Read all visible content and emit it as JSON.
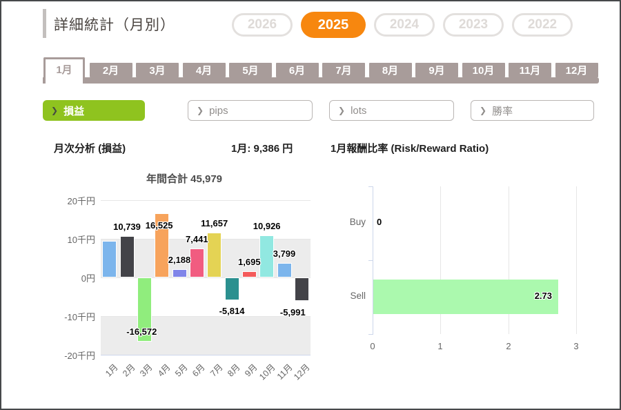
{
  "header": {
    "title": "詳細統計（月別）",
    "years": [
      {
        "label": "2026",
        "active": false
      },
      {
        "label": "2025",
        "active": true
      },
      {
        "label": "2024",
        "active": false
      },
      {
        "label": "2023",
        "active": false
      },
      {
        "label": "2022",
        "active": false
      }
    ],
    "active_year_color": "#f7870f"
  },
  "month_tabs": {
    "labels": [
      "1月",
      "2月",
      "3月",
      "4月",
      "5月",
      "6月",
      "7月",
      "8月",
      "9月",
      "10月",
      "11月",
      "12月"
    ],
    "active_index": 0,
    "color": "#a89c9a"
  },
  "filters": [
    {
      "label": "損益",
      "active": true
    },
    {
      "label": "pips",
      "active": false
    },
    {
      "label": "lots",
      "active": false
    },
    {
      "label": "勝率",
      "active": false
    }
  ],
  "filter_active_color": "#8fc31f",
  "section": {
    "left_title": "月次分析 (損益)",
    "selected_month_value": "1月: 9,386 円",
    "right_title": "1月報酬比率 (Risk/Reward Ratio)"
  },
  "chart_data": [
    {
      "type": "bar",
      "title": "年間合計 45,979",
      "categories": [
        "1月",
        "2月",
        "3月",
        "4月",
        "5月",
        "6月",
        "7月",
        "8月",
        "9月",
        "10月",
        "11月",
        "12月"
      ],
      "values": [
        9386,
        10739,
        -16572,
        16525,
        2188,
        7441,
        11657,
        -5814,
        1695,
        10926,
        3799,
        -5991
      ],
      "labels": [
        "",
        "10,739",
        "-16,572",
        "16,525",
        "2,188",
        "7,441",
        "11,657",
        "-5,814",
        "1,695",
        "10,926",
        "3,799",
        "-5,991"
      ],
      "colors": [
        "#7cb5ec",
        "#434348",
        "#90ed7d",
        "#f7a35c",
        "#8085e9",
        "#f15c80",
        "#e4d354",
        "#2b908f",
        "#f45b5b",
        "#91e8e1",
        "#7cb5ec",
        "#434348"
      ],
      "ytick_labels": [
        "20千円",
        "10千円",
        "0円",
        "-10千円",
        "-20千円"
      ],
      "yticks": [
        20000,
        10000,
        0,
        -10000,
        -20000
      ],
      "ylim": [
        -20000,
        20000
      ],
      "grid": true,
      "band_color": "#ececec",
      "hidden_labels": [
        0
      ],
      "label_offsets": {
        "2": [
          -4,
          -27
        ],
        "3": [
          -4,
          31
        ],
        "7": [
          0,
          3
        ],
        "11": [
          -13,
          4
        ]
      }
    },
    {
      "type": "bar-horizontal",
      "categories": [
        "Buy",
        "Sell"
      ],
      "values": [
        0,
        2.73
      ],
      "labels": [
        "0",
        "2.73"
      ],
      "bar_color": "#abf9ae",
      "xtick_labels": [
        "0",
        "1",
        "2",
        "3"
      ],
      "xticks": [
        0,
        1,
        2,
        3
      ],
      "xlim": [
        0,
        3.3
      ],
      "grid": true
    }
  ]
}
